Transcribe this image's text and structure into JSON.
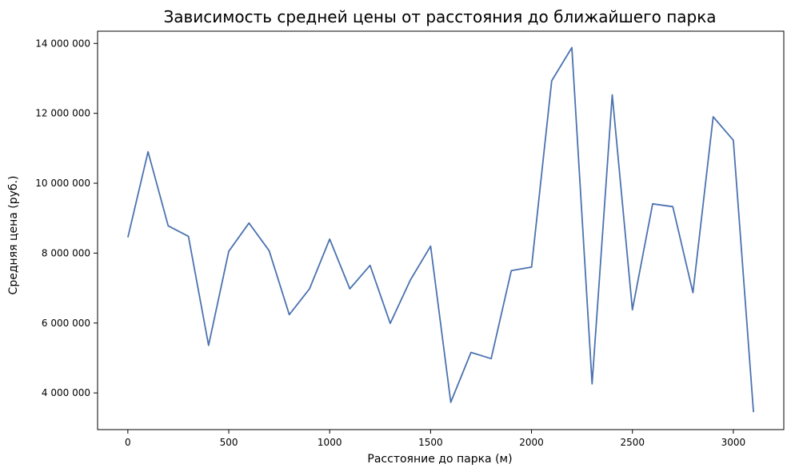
{
  "chart_data": {
    "type": "line",
    "title": "Зависимость средней цены от расстояния до ближайшего парка",
    "xlabel": "Расстояние до парка (м)",
    "ylabel": "Средняя цена (руб.)",
    "xlim": [
      -150,
      3250
    ],
    "ylim": [
      2950000,
      14350000
    ],
    "x_ticks": [
      0,
      500,
      1000,
      1500,
      2000,
      2500,
      3000
    ],
    "x_tick_labels": [
      "0",
      "500",
      "1000",
      "1500",
      "2000",
      "2500",
      "3000"
    ],
    "y_ticks": [
      4000000,
      6000000,
      8000000,
      10000000,
      12000000,
      14000000
    ],
    "y_tick_labels": [
      "4 000 000",
      "6 000 000",
      "8 000 000",
      "10 000 000",
      "12 000 000",
      "14 000 000"
    ],
    "grid": false,
    "line_color": "#4c72b0",
    "series": [
      {
        "x": [
          0,
          100,
          200,
          300,
          400,
          500,
          600,
          700,
          800,
          900,
          1000,
          1100,
          1200,
          1300,
          1400,
          1500,
          1600,
          1700,
          1800,
          1900,
          2000,
          2100,
          2200,
          2300,
          2400,
          2500,
          2600,
          2700,
          2800,
          2900,
          3000,
          3100
        ],
        "values": [
          8450000,
          10900000,
          8780000,
          8480000,
          5360000,
          8050000,
          8860000,
          8070000,
          6240000,
          6980000,
          8400000,
          6980000,
          7650000,
          5990000,
          7230000,
          8200000,
          3730000,
          5160000,
          4980000,
          7500000,
          7600000,
          12930000,
          13880000,
          4260000,
          12530000,
          6380000,
          9410000,
          9330000,
          6870000,
          11900000,
          11230000,
          3450000
        ]
      }
    ]
  }
}
